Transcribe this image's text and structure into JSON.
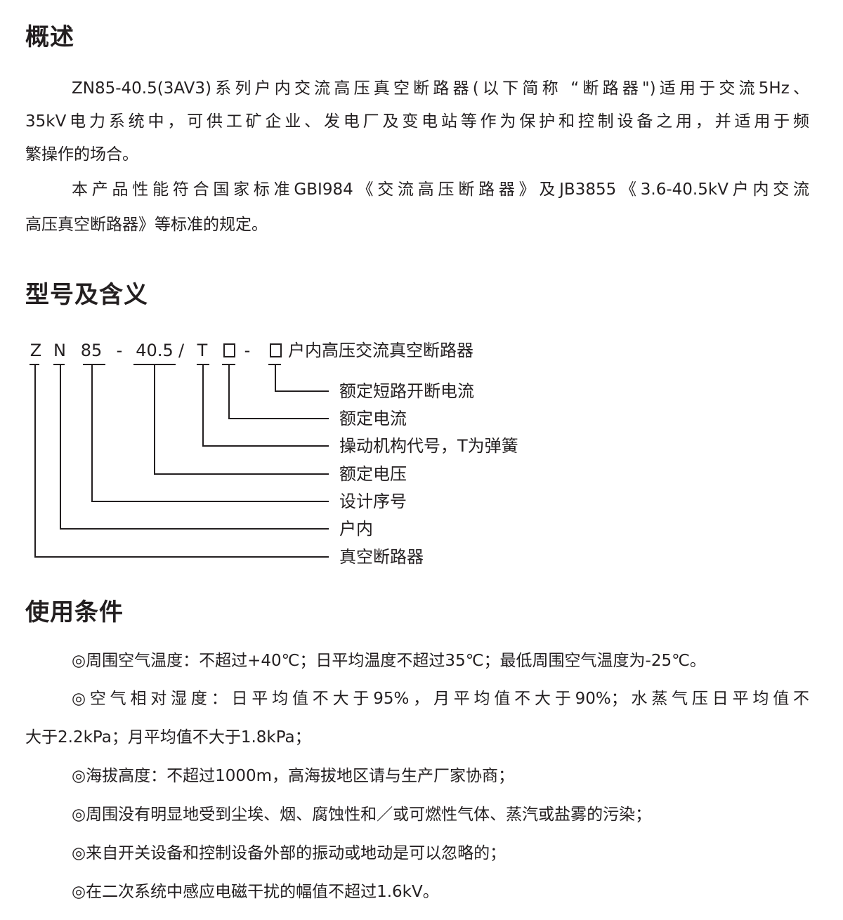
{
  "overview": {
    "heading": "概述",
    "lines": [
      "ZN85-40.5(3AV3)系列户内交流高压真空断路器(以下简称 “断路器\")适用于交流5Hz、",
      "35kV电力系统中，可供工矿企业、发电厂及变电站等作为保护和控制设备之用，并适用于频",
      "繁操作的场合。",
      "本产品性能符合国家标准GBI984《交流高压断路器》及JB3855《3.6-40.5kV户内交流",
      "高压真空断路器》等标准的规定。"
    ]
  },
  "model": {
    "heading": "型号及含义",
    "tokens": [
      "Z",
      "N",
      "85",
      "-",
      "40.5",
      "/",
      "T",
      "□",
      "-",
      "□"
    ],
    "suffix": "户内高压交流真空断路器",
    "meanings": [
      "额定短路开断电流",
      "额定电流",
      "操动机构代号，T为弹簧",
      "额定电压",
      "设计序号",
      "户内",
      "真空断路器"
    ]
  },
  "conditions": {
    "heading": "使用条件",
    "lines": [
      "◎周围空气温度：不超过+40℃；日平均温度不超过35℃；最低周围空气温度为-25℃。",
      "◎空气相对湿度：日平均值不大于95%，月平均值不大于90%；水蒸气压日平均值不",
      "大于2.2kPa；月平均值不大于1.8kPa；",
      "◎海拔高度：不超过1000m，高海拔地区请与生产厂家协商；",
      "◎周围没有明显地受到尘埃、烟、腐蚀性和／或可燃性气体、蒸汽或盐雾的污染；",
      "◎来自开关设备和控制设备外部的振动或地动是可以忽略的；",
      "◎在二次系统中感应电磁干扰的幅值不超过1.6kV。"
    ]
  }
}
